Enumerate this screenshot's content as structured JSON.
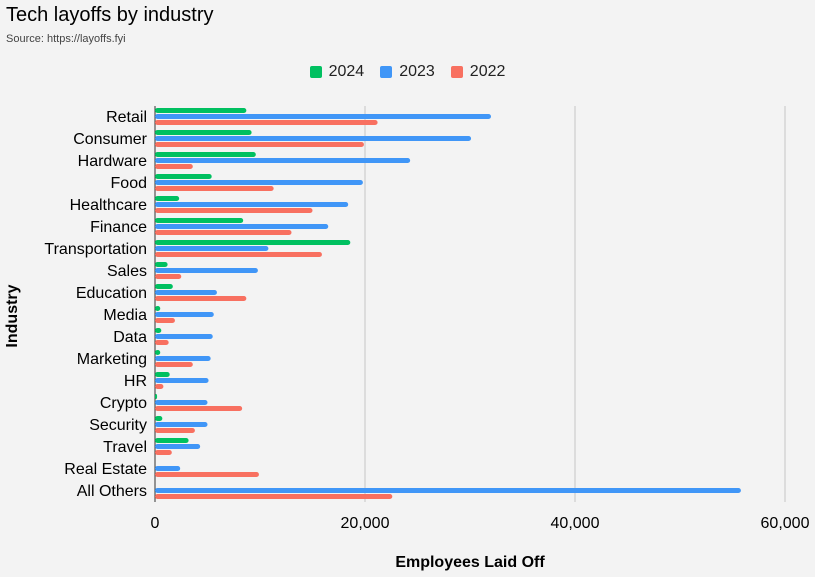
{
  "header": {
    "title": "Tech layoffs by industry",
    "subtitle": "Source: https://layoffs.fyi"
  },
  "legend": [
    {
      "name": "2024",
      "color": "#00c060"
    },
    {
      "name": "2023",
      "color": "#4096f7"
    },
    {
      "name": "2022",
      "color": "#f87060"
    }
  ],
  "chart_data": {
    "type": "bar",
    "orientation": "horizontal",
    "xlabel": "Employees Laid Off",
    "ylabel": "Industry",
    "xlim": [
      0,
      60000
    ],
    "xticks": [
      "0",
      "20,000",
      "40,000",
      "60,000"
    ],
    "grid": true,
    "legend_position": "top",
    "categories": [
      "Retail",
      "Consumer",
      "Hardware",
      "Food",
      "Healthcare",
      "Finance",
      "Transportation",
      "Sales",
      "Education",
      "Media",
      "Data",
      "Marketing",
      "HR",
      "Crypto",
      "Security",
      "Travel",
      "Real Estate",
      "All Others"
    ],
    "series": [
      {
        "name": "2024",
        "color": "#00c060",
        "values": [
          8700,
          9200,
          9600,
          5400,
          2300,
          8400,
          18600,
          1200,
          1700,
          500,
          600,
          500,
          1400,
          200,
          700,
          3200,
          0,
          0
        ]
      },
      {
        "name": "2023",
        "color": "#4096f7",
        "values": [
          32000,
          30100,
          24300,
          19800,
          18400,
          16500,
          10800,
          9800,
          5900,
          5600,
          5500,
          5300,
          5100,
          5000,
          5000,
          4300,
          2400,
          55800
        ]
      },
      {
        "name": "2022",
        "color": "#f87060",
        "values": [
          21200,
          19900,
          3600,
          11300,
          15000,
          13000,
          15900,
          2500,
          8700,
          1900,
          1300,
          3600,
          800,
          8300,
          3800,
          1600,
          9900,
          22600
        ]
      }
    ]
  }
}
